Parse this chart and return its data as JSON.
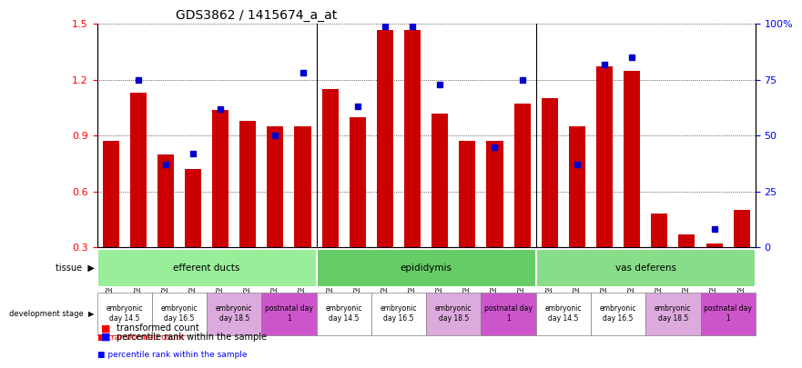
{
  "title": "GDS3862 / 1415674_a_at",
  "samples": [
    "GSM560923",
    "GSM560924",
    "GSM560925",
    "GSM560926",
    "GSM560927",
    "GSM560928",
    "GSM560929",
    "GSM560930",
    "GSM560931",
    "GSM560932",
    "GSM560933",
    "GSM560934",
    "GSM560935",
    "GSM560936",
    "GSM560937",
    "GSM560938",
    "GSM560939",
    "GSM560940",
    "GSM560941",
    "GSM560942",
    "GSM560943",
    "GSM560944",
    "GSM560945",
    "GSM560946"
  ],
  "red_values": [
    0.87,
    1.13,
    0.8,
    0.72,
    1.04,
    0.98,
    0.95,
    0.95,
    1.15,
    1.0,
    1.47,
    1.47,
    1.02,
    0.87,
    0.87,
    1.07,
    1.1,
    0.95,
    1.27,
    1.25,
    0.48,
    0.37,
    0.32,
    0.5
  ],
  "blue_values": [
    null,
    75,
    37,
    42,
    62,
    null,
    50,
    78,
    null,
    63,
    99,
    99,
    73,
    null,
    45,
    75,
    null,
    37,
    82,
    85,
    null,
    null,
    8,
    null
  ],
  "ylim_left": [
    0.3,
    1.5
  ],
  "ylim_right": [
    0,
    100
  ],
  "yticks_left": [
    0.3,
    0.6,
    0.9,
    1.2,
    1.5
  ],
  "yticks_right": [
    0,
    25,
    50,
    75,
    100
  ],
  "bar_color": "#cc0000",
  "dot_color": "#0000cc",
  "tissues": [
    {
      "label": "efferent ducts",
      "start": 0,
      "end": 7,
      "color": "#99ee99"
    },
    {
      "label": "epididymis",
      "start": 8,
      "end": 15,
      "color": "#66cc66"
    },
    {
      "label": "vas deferens",
      "start": 16,
      "end": 23,
      "color": "#88dd88"
    }
  ],
  "dev_stages": [
    {
      "label": "embryonic\nday 14.5",
      "start": 0,
      "end": 1,
      "color": "#ffffff"
    },
    {
      "label": "embryonic\nday 16.5",
      "start": 2,
      "end": 3,
      "color": "#ffffff"
    },
    {
      "label": "embryonic\nday 18.5",
      "start": 4,
      "end": 5,
      "color": "#ee88ee"
    },
    {
      "label": "postnatal day\n1",
      "start": 6,
      "end": 7,
      "color": "#ee44ee"
    },
    {
      "label": "embryonic\nday 14.5",
      "start": 8,
      "end": 9,
      "color": "#ffffff"
    },
    {
      "label": "embryonic\nday 16.5",
      "start": 10,
      "end": 11,
      "color": "#ffffff"
    },
    {
      "label": "embryonic\nday 18.5",
      "start": 12,
      "end": 13,
      "color": "#ee88ee"
    },
    {
      "label": "postnatal day\n1",
      "start": 14,
      "end": 15,
      "color": "#ee44ee"
    },
    {
      "label": "embryonic\nday 14.5",
      "start": 16,
      "end": 17,
      "color": "#ffffff"
    },
    {
      "label": "embryonic\nday 16.5",
      "start": 18,
      "end": 19,
      "color": "#ffffff"
    },
    {
      "label": "embryonic\nday 18.5",
      "start": 20,
      "end": 21,
      "color": "#ee88ee"
    },
    {
      "label": "postnatal day\n1",
      "start": 22,
      "end": 23,
      "color": "#ee44ee"
    }
  ]
}
